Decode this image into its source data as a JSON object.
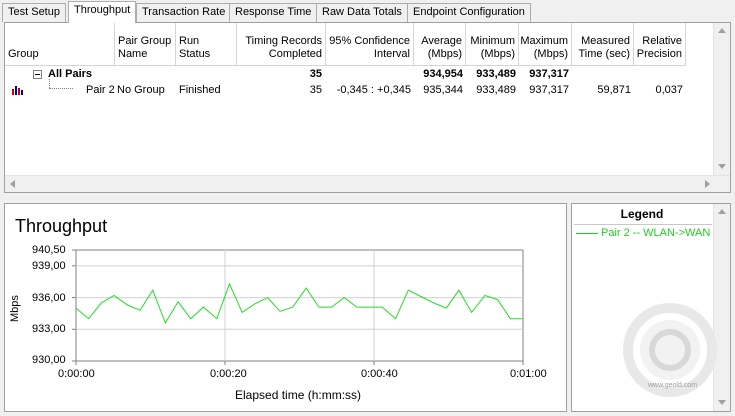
{
  "tabs": [
    {
      "label": "Test Setup",
      "active": false
    },
    {
      "label": "Throughput",
      "active": true
    },
    {
      "label": "Transaction Rate",
      "active": false
    },
    {
      "label": "Response Time",
      "active": false
    },
    {
      "label": "Raw Data Totals",
      "active": false
    },
    {
      "label": "Endpoint Configuration",
      "active": false
    }
  ],
  "table": {
    "headers": {
      "group": "Group",
      "pair_group_name_1": "Pair Group",
      "pair_group_name_2": "Name",
      "run_status": "Run Status",
      "timing_1": "Timing Records",
      "timing_2": "Completed",
      "ci_1": "95% Confidence",
      "ci_2": "Interval",
      "avg_1": "Average",
      "avg_2": "(Mbps)",
      "min_1": "Minimum",
      "min_2": "(Mbps)",
      "max_1": "Maximum",
      "max_2": "(Mbps)",
      "mt_1": "Measured",
      "mt_2": "Time (sec)",
      "rp_1": "Relative",
      "rp_2": "Precision"
    },
    "all_pairs": {
      "label": "All Pairs",
      "timing": "35",
      "average": "934,954",
      "minimum": "933,489",
      "maximum": "937,317"
    },
    "pair": {
      "label": "Pair 2",
      "group_name": "No Group",
      "status": "Finished",
      "timing": "35",
      "ci": "-0,345 : +0,345",
      "average": "935,344",
      "minimum": "933,489",
      "maximum": "937,317",
      "measured_time": "59,871",
      "precision": "0,037"
    }
  },
  "chart": {
    "title": "Throughput",
    "ylabel": "Mbps",
    "xlabel": "Elapsed time (h:mm:ss)",
    "yticks": [
      "940,50",
      "939,00",
      "936,00",
      "933,00",
      "930,00"
    ],
    "xticks": [
      "0:00:00",
      "0:00:20",
      "0:00:40",
      "0:01:00"
    ],
    "line_color": "#22dd22"
  },
  "chart_data": {
    "type": "line",
    "title": "Throughput",
    "xlabel": "Elapsed time (h:mm:ss)",
    "ylabel": "Mbps",
    "ylim": [
      930.0,
      940.5
    ],
    "xlim": [
      0,
      60
    ],
    "grid": true,
    "series": [
      {
        "name": "Pair 2 -- WLAN->WAN",
        "x": [
          0,
          1.7,
          3.4,
          5.1,
          6.9,
          8.6,
          10.3,
          12.0,
          13.7,
          15.4,
          17.1,
          18.9,
          20.6,
          22.3,
          24.0,
          25.7,
          27.4,
          29.1,
          30.9,
          32.6,
          34.3,
          36.0,
          37.7,
          39.4,
          41.1,
          42.9,
          44.6,
          46.3,
          48.0,
          49.7,
          51.4,
          53.1,
          54.9,
          56.6,
          58.3,
          60.0
        ],
        "y": [
          935.0,
          934.0,
          935.5,
          936.2,
          935.3,
          934.8,
          936.7,
          933.6,
          935.6,
          934.0,
          935.1,
          934.0,
          937.3,
          934.6,
          935.4,
          936.0,
          934.7,
          935.1,
          936.9,
          935.1,
          935.1,
          936.0,
          935.1,
          935.1,
          935.1,
          934.0,
          936.7,
          936.1,
          935.5,
          935.0,
          936.7,
          934.6,
          936.2,
          935.8,
          934.0,
          934.0
        ]
      }
    ]
  },
  "legend": {
    "title": "Legend",
    "items": [
      "Pair 2 -- WLAN->WAN"
    ]
  },
  "watermark": {
    "text": "www.geold.com"
  }
}
